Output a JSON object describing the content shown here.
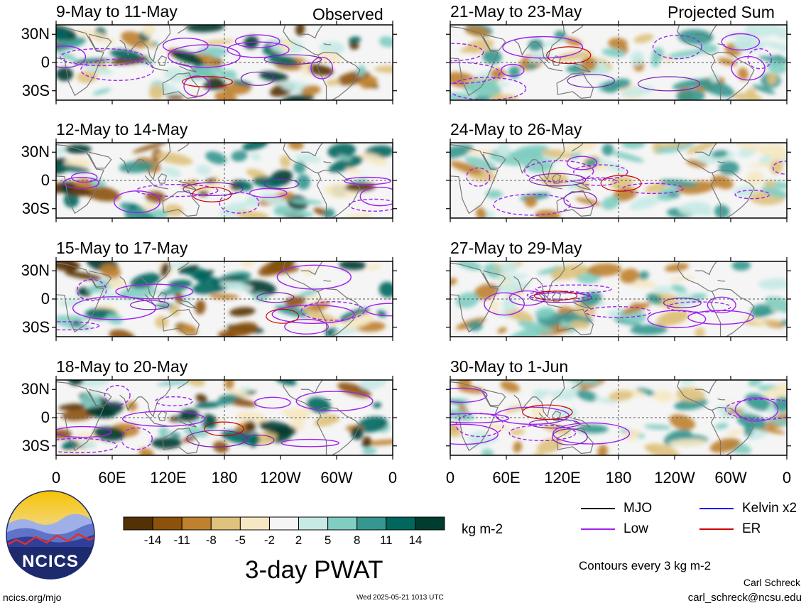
{
  "corner_labels": {
    "left": "Observed",
    "right": "Projected Sum"
  },
  "panels_left": [
    {
      "title": "9-May to 11-May"
    },
    {
      "title": "12-May to 14-May"
    },
    {
      "title": "15-May to 17-May"
    },
    {
      "title": "18-May to 20-May"
    }
  ],
  "panels_right": [
    {
      "title": "21-May to 23-May"
    },
    {
      "title": "24-May to 26-May"
    },
    {
      "title": "27-May to 29-May"
    },
    {
      "title": "30-May to 1-Jun"
    }
  ],
  "lat_labels": [
    "30N",
    "0",
    "30S"
  ],
  "lon_labels": [
    "0",
    "60E",
    "120E",
    "180",
    "120W",
    "60W",
    "0"
  ],
  "colorbar": {
    "ticks": [
      "-14",
      "-11",
      "-8",
      "-5",
      "-2",
      "2",
      "5",
      "8",
      "11",
      "14"
    ],
    "colors": [
      "#543005",
      "#8c510a",
      "#bf812d",
      "#dfc27d",
      "#f6e8c3",
      "#f5f5f5",
      "#c7eae5",
      "#80cdc1",
      "#35978f",
      "#01665e",
      "#003c30"
    ],
    "units": "kg m-2"
  },
  "title": "3-day PWAT",
  "legend": [
    {
      "label": "MJO",
      "color": "#000000"
    },
    {
      "label": "Kelvin x2",
      "color": "#0000ff"
    },
    {
      "label": "Low",
      "color": "#a020f0"
    },
    {
      "label": "ER",
      "color": "#cc0000"
    }
  ],
  "contour_note": "Contours every 3 kg m-2",
  "author": "Carl Schreck",
  "email": "carl_schreck@ncsu.edu",
  "site": "ncics.org/mjo",
  "date": "Wed 2025-05-21 1013 UTC",
  "logo_text": "NCICS"
}
